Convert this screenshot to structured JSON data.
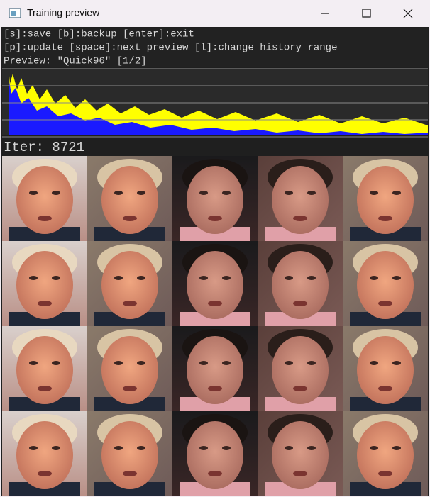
{
  "window": {
    "title": "Training preview"
  },
  "help": {
    "lines": [
      "[s]:save [b]:backup [enter]:exit",
      "[p]:update [space]:next preview [l]:change history range",
      "Preview: \"Quick96\" [1/2]"
    ]
  },
  "status": {
    "iter": "Iter: 8721"
  }
}
